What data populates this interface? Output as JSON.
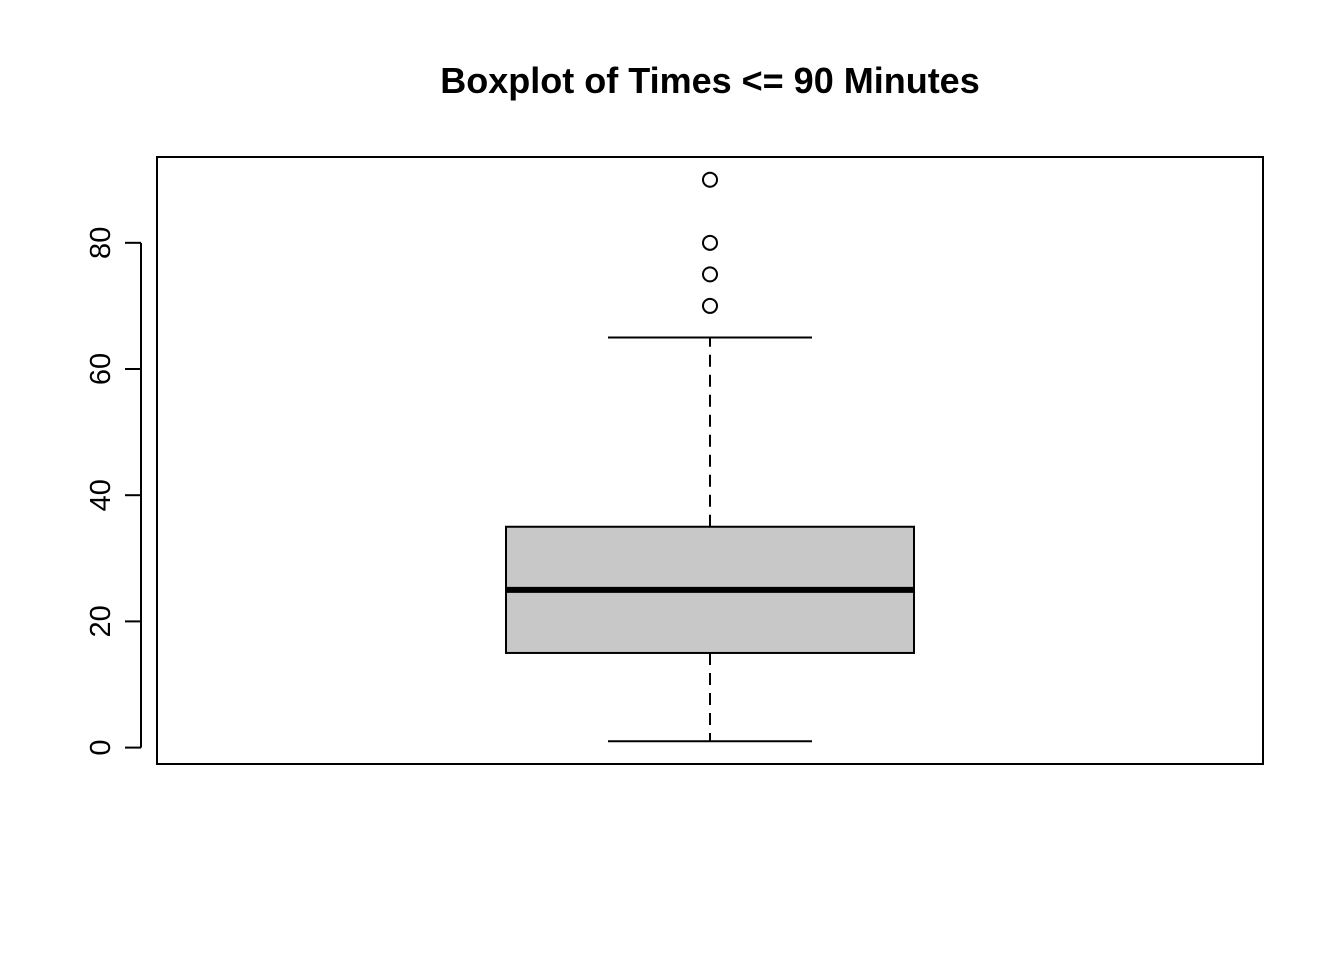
{
  "chart_data": {
    "type": "boxplot",
    "title": "Boxplot of Times <= 90 Minutes",
    "xlabel": "",
    "ylabel": "",
    "ylim": [
      -2.6,
      93.6
    ],
    "yticks": [
      0,
      20,
      40,
      60,
      80
    ],
    "ytick_labels": [
      "0",
      "20",
      "40",
      "60",
      "80"
    ],
    "grid": false,
    "box": {
      "min_whisker": 1,
      "q1": 15,
      "median": 25,
      "q3": 35,
      "max_whisker": 65,
      "outliers": [
        70,
        75,
        80,
        90
      ]
    },
    "colors": {
      "box_fill": "#c8c8c8",
      "stroke": "#000000",
      "background": "#ffffff"
    }
  }
}
